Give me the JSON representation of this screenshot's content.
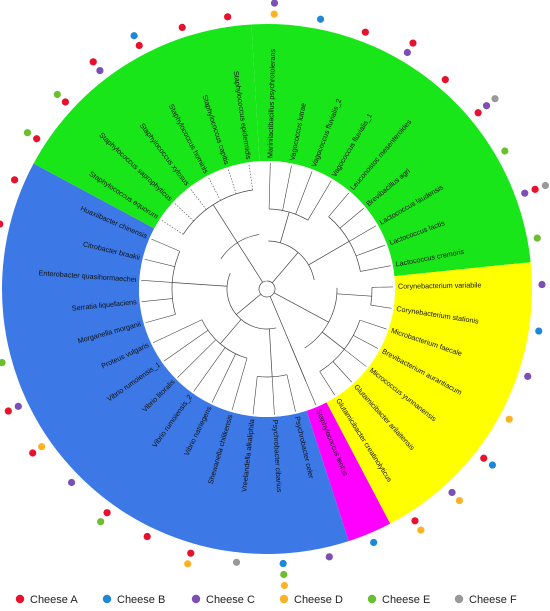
{
  "colors": {
    "clades": {
      "green": "#19e619",
      "blue": "#3c78e6",
      "yellow": "#ffff00",
      "magenta": "#ff00ff"
    },
    "cheeses": {
      "A": "#e8112d",
      "B": "#1e88d8",
      "C": "#7b4fb6",
      "D": "#fbb325",
      "E": "#6abf2e",
      "F": "#999999"
    }
  },
  "legend": [
    {
      "key": "A",
      "label": "Cheese A"
    },
    {
      "key": "B",
      "label": "Cheese B"
    },
    {
      "key": "C",
      "label": "Cheese C"
    },
    {
      "key": "D",
      "label": "Cheese D"
    },
    {
      "key": "E",
      "label": "Cheese E"
    },
    {
      "key": "F",
      "label": "Cheese F"
    }
  ],
  "taxa": [
    {
      "name": "Marinilactibacillus psychrotolerans",
      "clade": "green",
      "cheeses": [
        "D",
        "C"
      ]
    },
    {
      "name": "Vagococcus lutrae",
      "clade": "green",
      "cheeses": [
        "B"
      ]
    },
    {
      "name": "Vagococcus fluvialis_2",
      "clade": "green",
      "cheeses": [
        "A"
      ]
    },
    {
      "name": "Vagococcus fluvialis_1",
      "clade": "green",
      "cheeses": [
        "C",
        "A"
      ]
    },
    {
      "name": "Leuconostoc mesenteroides",
      "clade": "green",
      "cheeses": [
        "A"
      ]
    },
    {
      "name": "Brevibacillus agri",
      "clade": "green",
      "cheeses": [
        "A",
        "C",
        "F"
      ]
    },
    {
      "name": "Lactococcus laudensis",
      "clade": "green",
      "cheeses": [
        "E"
      ]
    },
    {
      "name": "Lactococcus lactis",
      "clade": "green",
      "cheeses": [
        "C",
        "A",
        "F"
      ]
    },
    {
      "name": "Lactococcus cremoris",
      "clade": "green",
      "cheeses": [
        "E"
      ]
    },
    {
      "name": "Corynebacterium variabile",
      "clade": "yellow",
      "cheeses": [
        "C"
      ]
    },
    {
      "name": "Corynebacterium stationis",
      "clade": "yellow",
      "cheeses": [
        "B"
      ]
    },
    {
      "name": "Microbacterium faecale",
      "clade": "yellow",
      "cheeses": [
        "C"
      ]
    },
    {
      "name": "Brevibacterium aurantiacum",
      "clade": "yellow",
      "cheeses": [
        "D"
      ]
    },
    {
      "name": "Micrococcus yunnanensis",
      "clade": "yellow",
      "cheeses": [
        "A",
        "B"
      ]
    },
    {
      "name": "Glutamicibacter arilaitensis",
      "clade": "yellow",
      "cheeses": [
        "C",
        "D"
      ]
    },
    {
      "name": "Glutamicibacter creatinolyticus",
      "clade": "yellow",
      "cheeses": [
        "A",
        "D"
      ]
    },
    {
      "name": "Staphylococcus lentus",
      "clade": "magenta",
      "cheeses": [
        "B"
      ]
    },
    {
      "name": "Psychrobacter celer",
      "clade": "blue",
      "cheeses": [
        "C"
      ]
    },
    {
      "name": "Psychrobacter cibarius",
      "clade": "blue",
      "cheeses": [
        "B",
        "E",
        "D"
      ]
    },
    {
      "name": "Vreelandella alkaliphila",
      "clade": "blue",
      "cheeses": [
        "F"
      ]
    },
    {
      "name": "Shewanella chilikensis",
      "clade": "blue",
      "cheeses": [
        "A",
        "D"
      ]
    },
    {
      "name": "Vibrio natriegens",
      "clade": "blue",
      "cheeses": [
        "A"
      ]
    },
    {
      "name": "Vibrio rumoiensis_2",
      "clade": "blue",
      "cheeses": [
        "A",
        "E"
      ]
    },
    {
      "name": "Vibrio litoralis",
      "clade": "blue",
      "cheeses": [
        "C"
      ]
    },
    {
      "name": "Vibrio rumoiensis_1",
      "clade": "blue",
      "cheeses": [
        "D",
        "A"
      ]
    },
    {
      "name": "Proteus vulgaris",
      "clade": "blue",
      "cheeses": [
        "C",
        "A"
      ]
    },
    {
      "name": "Morganella morganii",
      "clade": "blue",
      "cheeses": [
        "E"
      ]
    },
    {
      "name": "Serratia liquefaciens",
      "clade": "blue",
      "cheeses": [
        "F"
      ]
    },
    {
      "name": "Enterobacter quasihormaechei",
      "clade": "blue",
      "cheeses": [
        "A"
      ]
    },
    {
      "name": "Citrobacter braakii",
      "clade": "blue",
      "cheeses": [
        "A"
      ]
    },
    {
      "name": "Huaxiibacter chinensis",
      "clade": "blue",
      "cheeses": [
        "A"
      ]
    },
    {
      "name": "Staphylococcus equorum",
      "clade": "green",
      "cheeses": [
        "A",
        "E"
      ]
    },
    {
      "name": "Staphylococcus saprophyticus",
      "clade": "green",
      "cheeses": [
        "A",
        "E"
      ]
    },
    {
      "name": "Staphylococcus xylosus",
      "clade": "green",
      "cheeses": [
        "C",
        "A"
      ]
    },
    {
      "name": "Staphylococcus hominis",
      "clade": "green",
      "cheeses": [
        "A",
        "B"
      ]
    },
    {
      "name": "Staphylococcus capitis",
      "clade": "green",
      "cheeses": [
        "A"
      ]
    },
    {
      "name": "Staphylococcus epidermidis",
      "clade": "green",
      "cheeses": [
        "A"
      ]
    }
  ]
}
